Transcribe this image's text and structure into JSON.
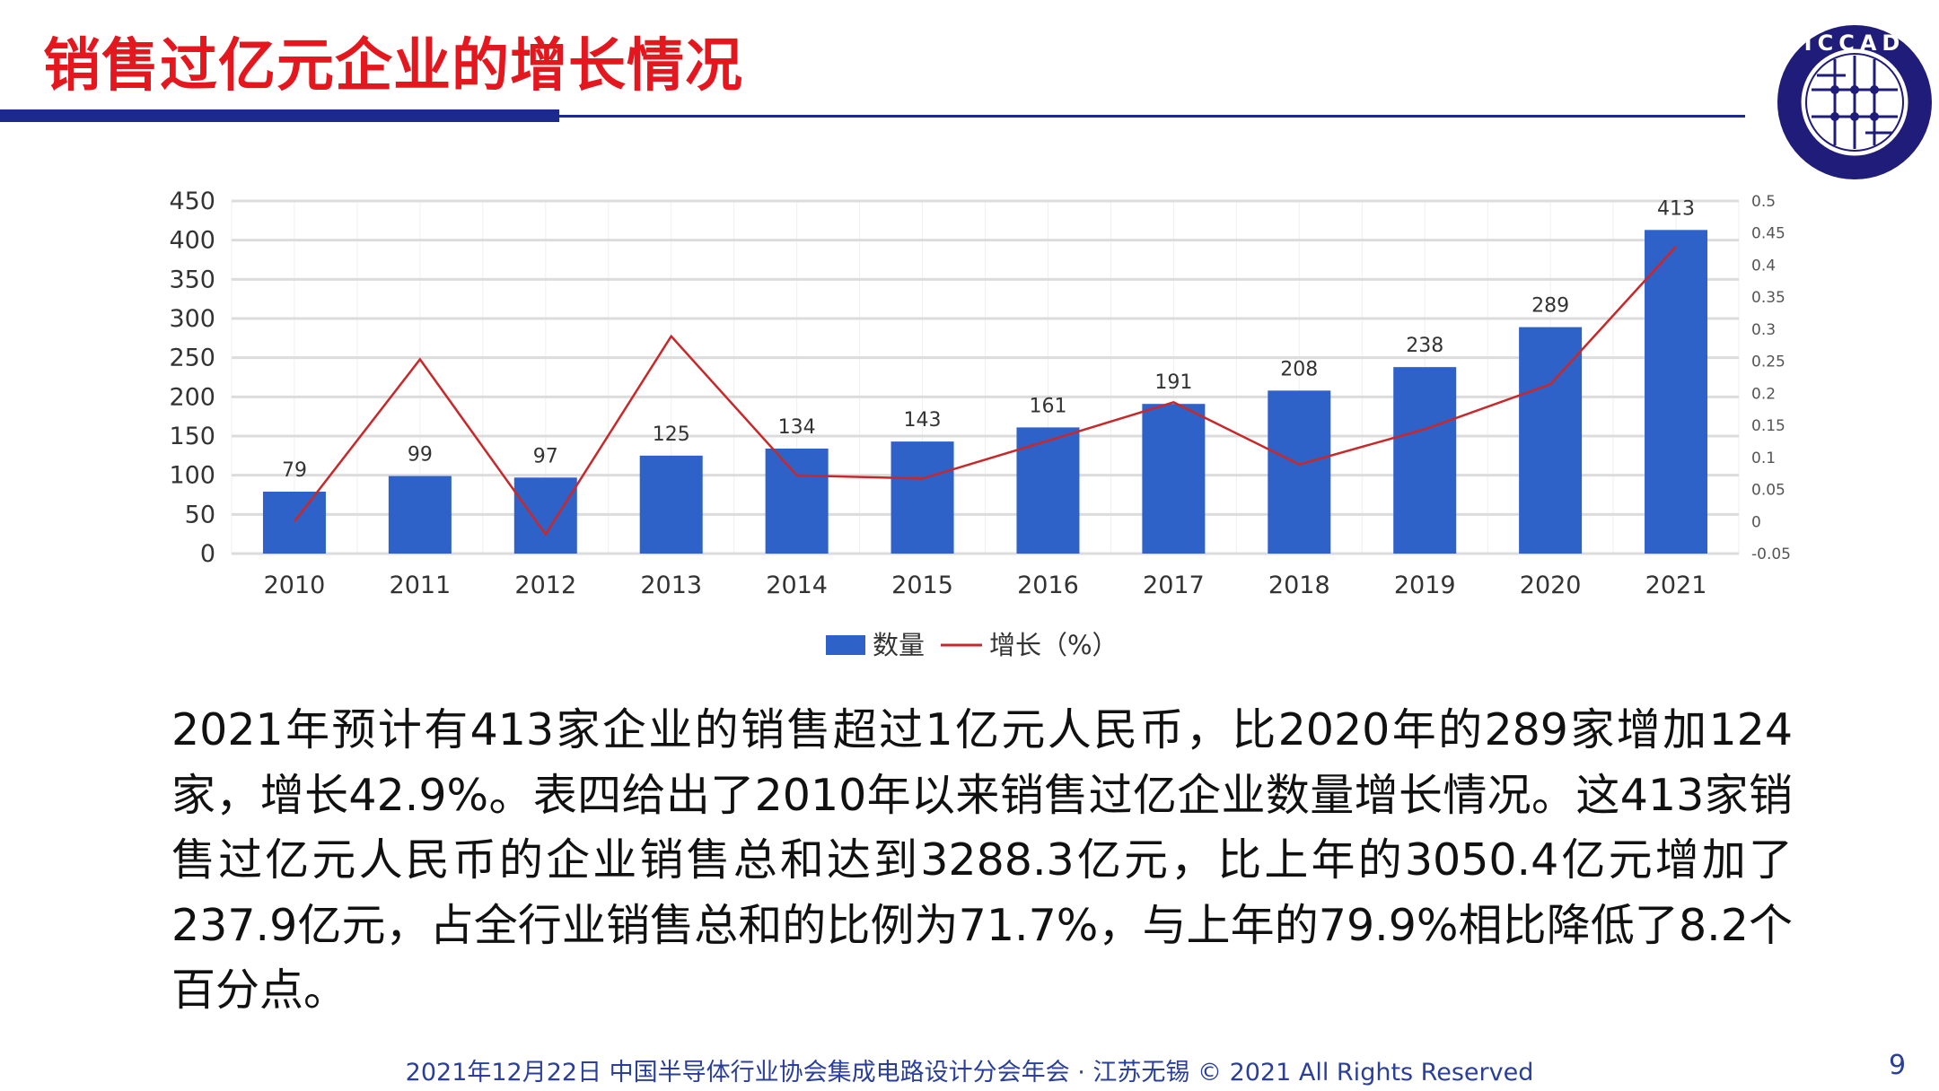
{
  "title": "销售过亿元企业的增长情况",
  "logo": {
    "text": "ICCAD",
    "subtext": "中国半导体行业协会集成电路设计分会"
  },
  "chart_data": {
    "type": "bar+line",
    "categories": [
      "2010",
      "2011",
      "2012",
      "2013",
      "2014",
      "2015",
      "2016",
      "2017",
      "2018",
      "2019",
      "2020",
      "2021"
    ],
    "series": [
      {
        "name": "数量",
        "type": "bar",
        "axis": "left",
        "color": "#2f62c8",
        "values": [
          79,
          99,
          97,
          125,
          134,
          143,
          161,
          191,
          208,
          238,
          289,
          413
        ]
      },
      {
        "name": "增长（%）",
        "type": "line",
        "axis": "right",
        "color": "#c8282a",
        "values": [
          0.0,
          0.253,
          -0.02,
          0.289,
          0.072,
          0.067,
          0.126,
          0.186,
          0.089,
          0.144,
          0.214,
          0.429
        ]
      }
    ],
    "ylim": [
      0,
      450
    ],
    "yticks": [
      "0",
      "50",
      "100",
      "150",
      "200",
      "250",
      "300",
      "350",
      "400",
      "450"
    ],
    "y2lim": [
      -0.05,
      0.5
    ],
    "y2ticks": [
      "-0.05",
      "0",
      "0.05",
      "0.1",
      "0.15",
      "0.2",
      "0.25",
      "0.3",
      "0.35",
      "0.4",
      "0.45",
      "0.5"
    ],
    "data_labels": true,
    "grid": true,
    "legend": "bottom"
  },
  "paragraph": "2021年预计有413家企业的销售超过1亿元人民币，比2020年的289家增加124家，增长42.9%。表四给出了2010年以来销售过亿企业数量增长情况。这413家销售过亿元人民币的企业销售总和达到3288.3亿元，比上年的3050.4亿元增加了237.9亿元，占全行业销售总和的比例为71.7%，与上年的79.9%相比降低了8.2个百分点。",
  "footer": "2021年12月22日 中国半导体行业协会集成电路设计分会年会 · 江苏无锡 © 2021 All Rights Reserved",
  "page_number": "9"
}
